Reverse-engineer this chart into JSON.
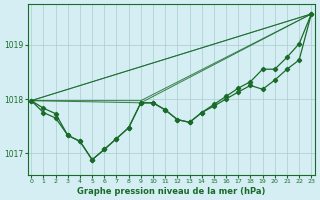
{
  "background_color": "#d4eef4",
  "grid_color": "#aacccc",
  "line_color": "#1a6b2a",
  "xlabel": "Graphe pression niveau de la mer (hPa)",
  "xlabel_color": "#1a6b2a",
  "ylim": [
    1016.6,
    1019.75
  ],
  "yticks": [
    1017,
    1018,
    1019
  ],
  "xlim": [
    -0.3,
    23.3
  ],
  "xticks": [
    0,
    1,
    2,
    3,
    4,
    5,
    6,
    7,
    8,
    9,
    10,
    11,
    12,
    13,
    14,
    15,
    16,
    17,
    18,
    19,
    20,
    21,
    22,
    23
  ],
  "line1_x": [
    0,
    1,
    2,
    3,
    4,
    5,
    6,
    7,
    8,
    9,
    10,
    11,
    12,
    13,
    14,
    15,
    16,
    17,
    18,
    19,
    20,
    21,
    22,
    23
  ],
  "line1_y": [
    1017.97,
    1017.83,
    1017.73,
    1017.33,
    1017.22,
    1016.88,
    1017.07,
    1017.27,
    1017.47,
    1017.93,
    1017.93,
    1017.8,
    1017.62,
    1017.57,
    1017.75,
    1017.87,
    1018.0,
    1018.13,
    1018.25,
    1018.18,
    1018.35,
    1018.55,
    1018.72,
    1019.57
  ],
  "line2_x": [
    0,
    1,
    2,
    3,
    4,
    5,
    6,
    7,
    8,
    9,
    10,
    11,
    12,
    13,
    14,
    15,
    16,
    17,
    18,
    19,
    20,
    21,
    22,
    23
  ],
  "line2_y": [
    1017.97,
    1017.75,
    1017.65,
    1017.33,
    1017.22,
    1016.88,
    1017.07,
    1017.27,
    1017.47,
    1017.93,
    1017.93,
    1017.8,
    1017.62,
    1017.57,
    1017.75,
    1017.9,
    1018.05,
    1018.2,
    1018.32,
    1018.55,
    1018.55,
    1018.77,
    1019.02,
    1019.57
  ],
  "line3_x": [
    0,
    23
  ],
  "line3_y": [
    1017.97,
    1019.57
  ],
  "line4_x": [
    0,
    23
  ],
  "line4_y": [
    1017.97,
    1019.57
  ],
  "line5_x": [
    0,
    10,
    23
  ],
  "line5_y": [
    1017.97,
    1017.93,
    1019.57
  ],
  "line6_x": [
    0,
    10,
    23
  ],
  "line6_y": [
    1017.97,
    1017.93,
    1019.57
  ]
}
